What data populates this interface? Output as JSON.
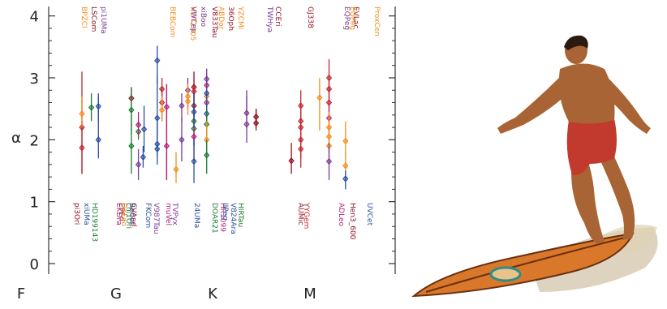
{
  "chart_data": {
    "type": "scatter",
    "title": "",
    "xlabel": "",
    "ylabel": "α",
    "ylim": [
      0,
      4.1
    ],
    "yticks": [
      "0",
      "1",
      "2",
      "3",
      "4"
    ],
    "xcategories": [
      "F",
      "G",
      "K",
      "M"
    ],
    "grid": false,
    "colors": {
      "red": "#c0272d",
      "darkred": "#8b0e1e",
      "orange": "#f28e1c",
      "green": "#1e7b34",
      "blue": "#2a4f9e",
      "purple": "#7b3c97",
      "magenta": "#b5237b"
    },
    "labels_top": [
      {
        "text": "BPZCl",
        "color": "orange"
      },
      {
        "text": "LSCom",
        "color": "darkred"
      },
      {
        "text": "pi1UMa",
        "color": "purple"
      },
      {
        "text": "BEBCom",
        "color": "orange"
      },
      {
        "text": "HD72905",
        "color": "orange"
      },
      {
        "text": "VWCep",
        "color": "purple"
      },
      {
        "text": "xiBoo",
        "color": "purple"
      },
      {
        "text": "ABDor",
        "color": "orange"
      },
      {
        "text": "V833Tau",
        "color": "darkred"
      },
      {
        "text": "36Oph",
        "color": "darkred"
      },
      {
        "text": "YZCMi",
        "color": "orange"
      },
      {
        "text": "CCEri",
        "color": "darkred"
      },
      {
        "text": "TWHya",
        "color": "purple"
      },
      {
        "text": "GJ338",
        "color": "darkred"
      },
      {
        "text": "EQPeg",
        "color": "purple"
      },
      {
        "text": "EVLac",
        "color": "darkred"
      },
      {
        "text": "EQPeg",
        "color": "orange"
      },
      {
        "text": "ProxCen",
        "color": "orange"
      }
    ],
    "labels_bottom": [
      {
        "text": "pi3Ori",
        "color": "darkred"
      },
      {
        "text": "xiUMa",
        "color": "blue"
      },
      {
        "text": "HD199143",
        "color": "green"
      },
      {
        "text": "EKDra",
        "color": "magenta"
      },
      {
        "text": "EPEri",
        "color": "darkred"
      },
      {
        "text": "DXLeo",
        "color": "orange"
      },
      {
        "text": "chi1Ori",
        "color": "green"
      },
      {
        "text": "BeCet",
        "color": "blue"
      },
      {
        "text": "CVAnd",
        "color": "darkred"
      },
      {
        "text": "FKCom",
        "color": "blue"
      },
      {
        "text": "V987Tau",
        "color": "purple"
      },
      {
        "text": "muVel",
        "color": "magenta"
      },
      {
        "text": "TVPyx",
        "color": "purple"
      },
      {
        "text": "24UMa",
        "color": "blue"
      },
      {
        "text": "DOAR21",
        "color": "green"
      },
      {
        "text": "HR1099",
        "color": "magenta"
      },
      {
        "text": "IIPeg",
        "color": "blue"
      },
      {
        "text": "V824Ara",
        "color": "blue"
      },
      {
        "text": "HIRTau",
        "color": "green"
      },
      {
        "text": "AUMic",
        "color": "darkred"
      },
      {
        "text": "YYGem",
        "color": "red"
      },
      {
        "text": "ADLeo",
        "color": "magenta"
      },
      {
        "text": "Hen3_600",
        "color": "darkred"
      },
      {
        "text": "UVCet",
        "color": "blue"
      }
    ],
    "points": [
      {
        "x": 0.5,
        "y": 1.87,
        "lo": 1.45,
        "hi": 2.3,
        "color": "red"
      },
      {
        "x": 0.5,
        "y": 2.2,
        "lo": 1.45,
        "hi": 3.1,
        "color": "red"
      },
      {
        "x": 0.5,
        "y": 2.42,
        "lo": 2.2,
        "hi": 2.7,
        "color": "orange"
      },
      {
        "x": 0.7,
        "y": 2.52,
        "lo": 2.3,
        "hi": 2.75,
        "color": "green"
      },
      {
        "x": 0.85,
        "y": 2.0,
        "lo": 1.7,
        "hi": 2.7,
        "color": "blue"
      },
      {
        "x": 0.85,
        "y": 2.54,
        "lo": 2.3,
        "hi": 2.75,
        "color": "blue"
      },
      {
        "x": 1.55,
        "y": 2.67,
        "lo": 2.45,
        "hi": 2.85,
        "color": "darkred"
      },
      {
        "x": 1.55,
        "y": 2.48,
        "lo": 2.1,
        "hi": 2.85,
        "color": "green"
      },
      {
        "x": 1.55,
        "y": 1.9,
        "lo": 1.45,
        "hi": 2.4,
        "color": "green"
      },
      {
        "x": 1.7,
        "y": 2.13,
        "lo": 2.0,
        "hi": 2.3,
        "color": "green"
      },
      {
        "x": 1.7,
        "y": 2.24,
        "lo": 2.05,
        "hi": 2.45,
        "color": "magenta"
      },
      {
        "x": 1.7,
        "y": 1.6,
        "lo": 1.35,
        "hi": 1.85,
        "color": "purple"
      },
      {
        "x": 1.8,
        "y": 1.72,
        "lo": 1.55,
        "hi": 1.9,
        "color": "blue"
      },
      {
        "x": 1.82,
        "y": 2.17,
        "lo": 1.8,
        "hi": 2.55,
        "color": "blue"
      },
      {
        "x": 2.1,
        "y": 1.85,
        "lo": 1.6,
        "hi": 2.25,
        "color": "blue"
      },
      {
        "x": 2.1,
        "y": 2.35,
        "lo": 1.9,
        "hi": 3.05,
        "color": "blue"
      },
      {
        "x": 2.1,
        "y": 3.28,
        "lo": 2.9,
        "hi": 3.52,
        "color": "blue"
      },
      {
        "x": 2.1,
        "y": 1.93,
        "lo": 1.75,
        "hi": 2.3,
        "color": "blue"
      },
      {
        "x": 2.2,
        "y": 2.6,
        "lo": 2.3,
        "hi": 2.85,
        "color": "red"
      },
      {
        "x": 2.2,
        "y": 2.82,
        "lo": 2.6,
        "hi": 3.0,
        "color": "red"
      },
      {
        "x": 2.2,
        "y": 2.48,
        "lo": 2.3,
        "hi": 2.7,
        "color": "orange"
      },
      {
        "x": 2.3,
        "y": 2.53,
        "lo": 1.35,
        "hi": 2.9,
        "color": "magenta"
      },
      {
        "x": 2.3,
        "y": 1.9,
        "lo": 1.35,
        "hi": 2.9,
        "color": "magenta"
      },
      {
        "x": 2.5,
        "y": 1.52,
        "lo": 1.3,
        "hi": 1.8,
        "color": "orange"
      },
      {
        "x": 2.62,
        "y": 2.0,
        "lo": 1.65,
        "hi": 2.35,
        "color": "purple"
      },
      {
        "x": 2.62,
        "y": 2.55,
        "lo": 2.3,
        "hi": 2.75,
        "color": "purple"
      },
      {
        "x": 2.75,
        "y": 2.8,
        "lo": 2.5,
        "hi": 3.0,
        "color": "purple"
      },
      {
        "x": 2.75,
        "y": 2.62,
        "lo": 2.4,
        "hi": 2.85,
        "color": "orange"
      },
      {
        "x": 2.75,
        "y": 2.7,
        "lo": 2.5,
        "hi": 2.9,
        "color": "orange"
      },
      {
        "x": 2.88,
        "y": 2.85,
        "lo": 2.4,
        "hi": 3.1,
        "color": "darkred"
      },
      {
        "x": 2.88,
        "y": 2.55,
        "lo": 2.2,
        "hi": 2.9,
        "color": "darkred"
      },
      {
        "x": 2.88,
        "y": 2.3,
        "lo": 1.9,
        "hi": 2.8,
        "color": "green"
      },
      {
        "x": 2.88,
        "y": 2.18,
        "lo": 1.9,
        "hi": 2.5,
        "color": "green"
      },
      {
        "x": 2.88,
        "y": 2.05,
        "lo": 1.65,
        "hi": 2.45,
        "color": "magenta"
      },
      {
        "x": 2.88,
        "y": 1.65,
        "lo": 1.3,
        "hi": 2.0,
        "color": "blue"
      },
      {
        "x": 2.88,
        "y": 2.78,
        "lo": 2.4,
        "hi": 3.0,
        "color": "red"
      },
      {
        "x": 2.88,
        "y": 2.45,
        "lo": 2.2,
        "hi": 2.75,
        "color": "blue"
      },
      {
        "x": 3.15,
        "y": 2.6,
        "lo": 2.35,
        "hi": 2.85,
        "color": "magenta"
      },
      {
        "x": 3.15,
        "y": 2.88,
        "lo": 2.6,
        "hi": 3.05,
        "color": "magenta"
      },
      {
        "x": 3.15,
        "y": 2.42,
        "lo": 2.2,
        "hi": 2.7,
        "color": "blue"
      },
      {
        "x": 3.15,
        "y": 2.25,
        "lo": 2.0,
        "hi": 2.5,
        "color": "green"
      },
      {
        "x": 3.15,
        "y": 2.0,
        "lo": 1.75,
        "hi": 2.3,
        "color": "orange"
      },
      {
        "x": 3.15,
        "y": 1.75,
        "lo": 1.45,
        "hi": 2.0,
        "color": "green"
      },
      {
        "x": 3.15,
        "y": 2.7,
        "lo": 2.5,
        "hi": 2.95,
        "color": "orange"
      },
      {
        "x": 3.15,
        "y": 2.75,
        "lo": 2.5,
        "hi": 3.0,
        "color": "blue"
      },
      {
        "x": 3.15,
        "y": 2.98,
        "lo": 2.8,
        "hi": 3.15,
        "color": "purple"
      },
      {
        "x": 4.0,
        "y": 2.25,
        "lo": 1.95,
        "hi": 2.8,
        "color": "purple"
      },
      {
        "x": 4.0,
        "y": 2.43,
        "lo": 2.2,
        "hi": 2.7,
        "color": "purple"
      },
      {
        "x": 4.2,
        "y": 2.27,
        "lo": 2.15,
        "hi": 2.5,
        "color": "darkred"
      },
      {
        "x": 4.2,
        "y": 2.37,
        "lo": 2.2,
        "hi": 2.5,
        "color": "darkred"
      },
      {
        "x": 4.95,
        "y": 1.66,
        "lo": 1.45,
        "hi": 1.95,
        "color": "darkred"
      },
      {
        "x": 5.15,
        "y": 2.55,
        "lo": 2.3,
        "hi": 2.8,
        "color": "red"
      },
      {
        "x": 5.15,
        "y": 2.3,
        "lo": 2.0,
        "hi": 2.6,
        "color": "red"
      },
      {
        "x": 5.15,
        "y": 2.0,
        "lo": 1.7,
        "hi": 2.3,
        "color": "red"
      },
      {
        "x": 5.15,
        "y": 1.85,
        "lo": 1.55,
        "hi": 2.15,
        "color": "red"
      },
      {
        "x": 5.15,
        "y": 2.2,
        "lo": 1.95,
        "hi": 2.45,
        "color": "red"
      },
      {
        "x": 5.55,
        "y": 2.68,
        "lo": 2.15,
        "hi": 3.0,
        "color": "orange"
      },
      {
        "x": 5.75,
        "y": 3.0,
        "lo": 2.8,
        "hi": 3.3,
        "color": "red"
      },
      {
        "x": 5.75,
        "y": 2.82,
        "lo": 2.6,
        "hi": 3.0,
        "color": "red"
      },
      {
        "x": 5.75,
        "y": 2.6,
        "lo": 2.35,
        "hi": 2.85,
        "color": "red"
      },
      {
        "x": 5.75,
        "y": 2.35,
        "lo": 2.1,
        "hi": 2.6,
        "color": "magenta"
      },
      {
        "x": 5.75,
        "y": 2.2,
        "lo": 1.95,
        "hi": 2.45,
        "color": "orange"
      },
      {
        "x": 5.75,
        "y": 2.05,
        "lo": 1.8,
        "hi": 2.3,
        "color": "orange"
      },
      {
        "x": 5.75,
        "y": 1.9,
        "lo": 1.6,
        "hi": 2.2,
        "color": "orange"
      },
      {
        "x": 5.75,
        "y": 1.65,
        "lo": 1.35,
        "hi": 1.95,
        "color": "purple"
      },
      {
        "x": 6.1,
        "y": 1.98,
        "lo": 1.75,
        "hi": 2.3,
        "color": "orange"
      },
      {
        "x": 6.1,
        "y": 1.58,
        "lo": 1.4,
        "hi": 1.8,
        "color": "orange"
      },
      {
        "x": 6.1,
        "y": 1.37,
        "lo": 1.2,
        "hi": 1.5,
        "color": "blue"
      }
    ]
  },
  "image": {
    "alt": "surfer on surfboard",
    "skin": "#a86434",
    "shorts": "#c23a2e",
    "board": "#d9782a",
    "board_stripe": "#6a2f10",
    "wave": "#c7b592"
  }
}
